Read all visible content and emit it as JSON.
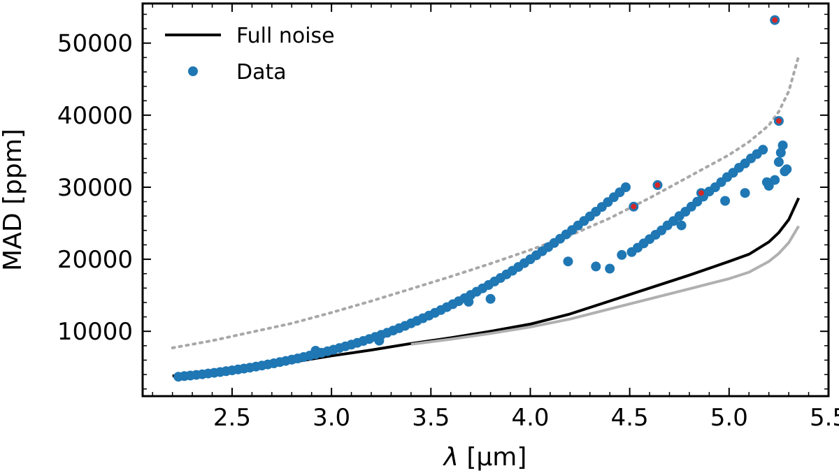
{
  "chart_data": {
    "type": "scatter",
    "xlabel_symbol": "λ",
    "xlabel_unit": "[μm]",
    "ylabel": "MAD [ppm]",
    "xlim": [
      2.05,
      5.5
    ],
    "ylim": [
      1000,
      55500
    ],
    "xticks": [
      2.5,
      3.0,
      3.5,
      4.0,
      4.5,
      5.0,
      5.5
    ],
    "xtick_labels": [
      "2.5",
      "3.0",
      "3.5",
      "4.0",
      "4.5",
      "5.0",
      "5.5"
    ],
    "yticks": [
      10000,
      20000,
      30000,
      40000,
      50000
    ],
    "ytick_labels": [
      "10000",
      "20000",
      "30000",
      "40000",
      "50000"
    ],
    "legend": {
      "placement": "top-left",
      "entries": [
        {
          "label": "Full noise",
          "kind": "line",
          "color": "#000000"
        },
        {
          "label": "Data",
          "kind": "marker",
          "color": "#1f77b4"
        }
      ]
    },
    "series": [
      {
        "name": "Full noise",
        "kind": "line",
        "color": "#000000",
        "x": [
          2.2,
          2.4,
          2.6,
          2.8,
          3.0,
          3.2,
          3.4,
          3.6,
          3.8,
          4.0,
          4.2,
          4.4,
          4.6,
          4.8,
          5.0,
          5.1,
          5.2,
          5.25,
          5.3,
          5.35
        ],
        "y": [
          3800,
          4300,
          4900,
          5700,
          6600,
          7400,
          8300,
          9100,
          10000,
          11000,
          12400,
          14200,
          16000,
          17800,
          19700,
          20700,
          22400,
          23700,
          25500,
          28500
        ]
      },
      {
        "name": "reference (solid grey)",
        "kind": "line",
        "color": "#b0b0b0",
        "x": [
          3.4,
          3.6,
          3.8,
          4.0,
          4.2,
          4.4,
          4.6,
          4.8,
          5.0,
          5.1,
          5.2,
          5.25,
          5.3,
          5.35
        ],
        "y": [
          8200,
          8900,
          9700,
          10600,
          11700,
          13100,
          14500,
          15900,
          17300,
          18200,
          19700,
          20800,
          22300,
          24600
        ]
      },
      {
        "name": "reference (dotted grey)",
        "kind": "dotted",
        "color": "#a8a8a8",
        "x": [
          2.2,
          2.4,
          2.6,
          2.8,
          3.0,
          3.2,
          3.4,
          3.6,
          3.8,
          4.0,
          4.2,
          4.4,
          4.6,
          4.8,
          5.0,
          5.1,
          5.2,
          5.25,
          5.3,
          5.35
        ],
        "y": [
          7700,
          8700,
          9900,
          11100,
          12600,
          14200,
          15900,
          17600,
          19400,
          21300,
          23300,
          25700,
          28500,
          31500,
          34500,
          36300,
          38600,
          40500,
          43300,
          48200
        ]
      },
      {
        "name": "Data",
        "kind": "marker",
        "color": "#1f77b4",
        "x": [
          2.23,
          2.26,
          2.29,
          2.32,
          2.35,
          2.38,
          2.41,
          2.44,
          2.47,
          2.5,
          2.53,
          2.56,
          2.59,
          2.62,
          2.65,
          2.68,
          2.71,
          2.74,
          2.77,
          2.8,
          2.83,
          2.86,
          2.89,
          2.92,
          2.95,
          2.98,
          3.01,
          3.04,
          3.07,
          3.1,
          3.13,
          3.16,
          3.19,
          3.22,
          3.25,
          3.28,
          3.31,
          3.34,
          3.37,
          3.4,
          3.43,
          3.46,
          3.49,
          3.52,
          3.55,
          3.58,
          3.61,
          3.64,
          3.67,
          3.7,
          3.73,
          3.76,
          3.79,
          3.82,
          3.85,
          3.88,
          3.91,
          3.94,
          3.97,
          4.0,
          4.03,
          4.06,
          4.09,
          4.12,
          4.15,
          4.18,
          4.21,
          4.24,
          4.27,
          4.3,
          4.33,
          4.36,
          4.39,
          4.42,
          4.45,
          4.48,
          4.51,
          4.54,
          4.57,
          4.6,
          4.63,
          4.66,
          4.69,
          4.72,
          4.75,
          4.78,
          4.81,
          4.84,
          4.87,
          4.9,
          4.93,
          4.96,
          4.99,
          5.02,
          5.05,
          5.08,
          5.11,
          5.14,
          5.17,
          5.2,
          5.23,
          5.25,
          5.27,
          5.29,
          2.92,
          3.24,
          3.69,
          3.8,
          4.19,
          4.33,
          4.4,
          4.46,
          4.76,
          4.98,
          5.08,
          5.19,
          5.26,
          5.28
        ],
        "y": [
          3700,
          3780,
          3860,
          3950,
          4040,
          4140,
          4240,
          4350,
          4460,
          4580,
          4700,
          4830,
          4960,
          5100,
          5250,
          5400,
          5560,
          5720,
          5890,
          6060,
          6240,
          6430,
          6620,
          6820,
          7020,
          7230,
          7450,
          7680,
          7910,
          8150,
          8400,
          8660,
          8930,
          9210,
          9500,
          9800,
          10110,
          10430,
          10760,
          11100,
          11450,
          11810,
          12180,
          12560,
          12950,
          13350,
          13760,
          14180,
          14610,
          15050,
          15500,
          15960,
          16430,
          16910,
          17400,
          17900,
          18410,
          18930,
          19460,
          20000,
          20550,
          21110,
          21680,
          22260,
          22850,
          23450,
          24060,
          24680,
          25310,
          25950,
          26600,
          27260,
          27930,
          28610,
          29300,
          30000,
          21000,
          21600,
          22200,
          22800,
          23400,
          24000,
          24700,
          25300,
          26000,
          26600,
          27300,
          28000,
          28700,
          29400,
          30000,
          30700,
          31400,
          32000,
          32700,
          33300,
          34000,
          34600,
          35200,
          30200,
          31000,
          33500,
          35800,
          32500,
          7300,
          8700,
          14100,
          14500,
          19700,
          19000,
          18700,
          20600,
          24700,
          28100,
          29200,
          30700,
          34800,
          32200
        ]
      },
      {
        "name": "Outliers",
        "kind": "marker",
        "color": "#d62728",
        "edge": "#1f77b4",
        "x": [
          4.52,
          4.64,
          4.86,
          5.23,
          5.25
        ],
        "y": [
          27300,
          30300,
          29200,
          53200,
          39200
        ]
      }
    ]
  }
}
